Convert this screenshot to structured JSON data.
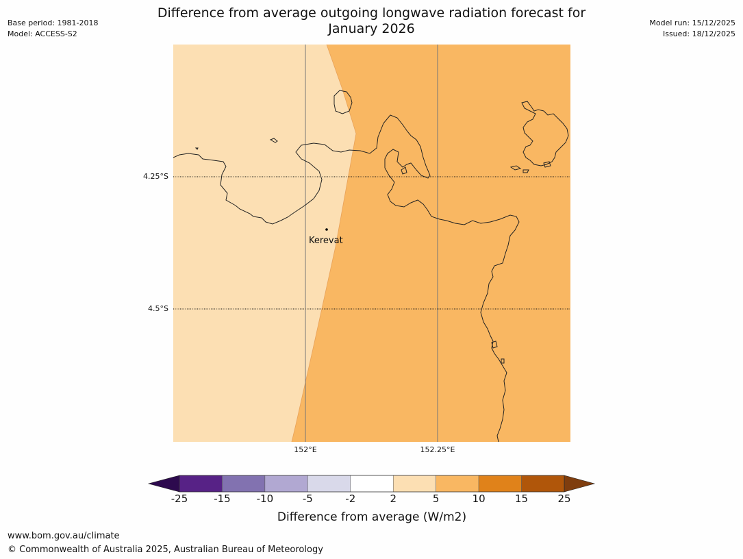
{
  "header": {
    "base_period": "Base period: 1981-2018",
    "model": "Model: ACCESS-S2",
    "title_line1": "Difference from average outgoing longwave radiation forecast for",
    "title_line2": "January 2026",
    "model_run": "Model run: 15/12/2025",
    "issued": "Issued: 18/12/2025"
  },
  "map": {
    "lat_labels": [
      "4.25°S",
      "4.5°S"
    ],
    "lon_labels": [
      "152°E",
      "152.25°E"
    ],
    "place": {
      "name": "Kerevat"
    },
    "regions": [
      {
        "category": "2 to 5",
        "color": "#fcdfb3"
      },
      {
        "category": "5 to 10",
        "color": "#f9b762"
      }
    ]
  },
  "colorbar": {
    "label": "Difference from average (W/m2)",
    "ticks": [
      "-25",
      "-15",
      "-10",
      "-5",
      "-2",
      "2",
      "5",
      "10",
      "15",
      "25"
    ],
    "bins": [
      "#572286",
      "#8272b0",
      "#b1a8d2",
      "#d9d9ea",
      "#ffffff",
      "#fcdfb3",
      "#f9b762",
      "#e0821a",
      "#b0560a"
    ],
    "extend_low_color": "#2d0a4e",
    "extend_high_color": "#7f3d0e"
  },
  "footer": {
    "url": "www.bom.gov.au/climate",
    "copyright": "© Commonwealth of Australia 2025, Australian Bureau of Meteorology"
  }
}
